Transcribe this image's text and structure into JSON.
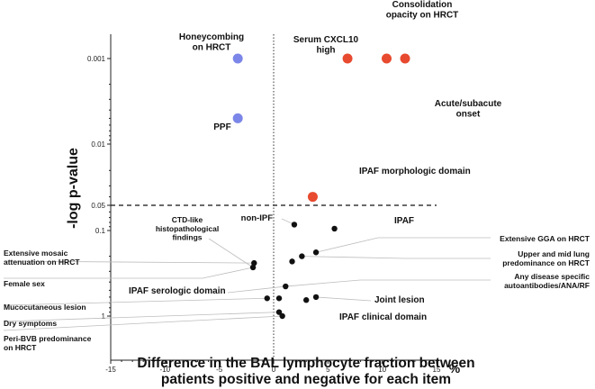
{
  "chart_data": {
    "type": "scatter",
    "xlabel": "Difference in the BAL lymphocyte fraction between patients positive and negative for each item",
    "x_unit": "%",
    "ylabel": "-log p-value",
    "xlim": [
      -15,
      15
    ],
    "x_ticks": [
      "-15",
      "-10",
      "-5",
      "0",
      "5",
      "10",
      "15"
    ],
    "y_ticks": [
      {
        "label": "0.001",
        "p": 0.001
      },
      {
        "label": "0.01",
        "p": 0.01
      },
      {
        "label": "0.05",
        "p": 0.05
      },
      {
        "label": "0.1",
        "p": 0.1
      },
      {
        "label": "1",
        "p": 1
      }
    ],
    "threshold_p": 0.05,
    "colors": {
      "negative_sig": "#7b86e8",
      "positive_sig": "#e84a2f",
      "nonsig": "#111111",
      "leader": "#bdbdbd"
    },
    "points": [
      {
        "x": -3.3,
        "p": 0.001,
        "color": "blue"
      },
      {
        "x": -3.3,
        "p": 0.005,
        "color": "blue"
      },
      {
        "x": 6.8,
        "p": 0.001,
        "color": "red"
      },
      {
        "x": 10.4,
        "p": 0.001,
        "color": "red"
      },
      {
        "x": 12.1,
        "p": 0.001,
        "color": "red"
      },
      {
        "x": 3.6,
        "p": 0.04,
        "color": "red"
      },
      {
        "x": 1.9,
        "p": 0.085,
        "color": "black"
      },
      {
        "x": 5.6,
        "p": 0.095,
        "color": "black"
      },
      {
        "x": 3.9,
        "p": 0.18,
        "color": "black"
      },
      {
        "x": 2.6,
        "p": 0.2,
        "color": "black"
      },
      {
        "x": 1.7,
        "p": 0.23,
        "color": "black"
      },
      {
        "x": -1.8,
        "p": 0.24,
        "color": "black"
      },
      {
        "x": -1.9,
        "p": 0.27,
        "color": "black"
      },
      {
        "x": 1.1,
        "p": 0.45,
        "color": "black"
      },
      {
        "x": 3.9,
        "p": 0.6,
        "color": "black"
      },
      {
        "x": 3.0,
        "p": 0.65,
        "color": "black"
      },
      {
        "x": -0.6,
        "p": 0.62,
        "color": "black"
      },
      {
        "x": 0.5,
        "p": 0.62,
        "color": "black"
      },
      {
        "x": 0.5,
        "p": 0.9,
        "color": "black"
      },
      {
        "x": 0.8,
        "p": 1.0,
        "color": "black"
      }
    ],
    "annotations": [
      {
        "text": [
          "Honeycombing",
          "on HRCT"
        ],
        "align": "middle",
        "size": 10,
        "leader": false
      },
      {
        "text": [
          "PPF"
        ],
        "align": "middle",
        "size": 10,
        "leader": false
      },
      {
        "text": [
          "Serum CXCL10",
          "high"
        ],
        "align": "middle",
        "size": 10,
        "leader": false
      },
      {
        "text": [
          "Consolidation",
          "opacity on HRCT"
        ],
        "align": "middle",
        "size": 10,
        "leader": false
      },
      {
        "text": [
          "Acute/subacute",
          "onset"
        ],
        "align": "middle",
        "size": 10,
        "leader": false
      },
      {
        "text": [
          "IPAF morphologic domain"
        ],
        "align": "start",
        "size": 10,
        "leader": false
      },
      {
        "text": [
          "non-IPF"
        ],
        "align": "end",
        "size": 9.5,
        "leader": true
      },
      {
        "text": [
          "IPAF"
        ],
        "align": "start",
        "size": 10,
        "leader": false
      },
      {
        "text": [
          "CTD-like",
          "histopathological",
          "findings"
        ],
        "align": "middle",
        "size": 8.5,
        "leader": true
      },
      {
        "text": [
          "Extensive GGA on HRCT"
        ],
        "align": "end",
        "size": 8.5,
        "leader": true
      },
      {
        "text": [
          "Upper and mid lung",
          "predominance on HRCT"
        ],
        "align": "end",
        "size": 8.5,
        "leader": true
      },
      {
        "text": [
          "Extensive mosaic",
          "attenuation on HRCT"
        ],
        "align": "start",
        "size": 8.5,
        "leader": true
      },
      {
        "text": [
          "Female sex"
        ],
        "align": "start",
        "size": 8.5,
        "leader": true
      },
      {
        "text": [
          "Any disease specific",
          "autoantibodies/ANA/RF"
        ],
        "align": "end",
        "size": 8.5,
        "leader": true
      },
      {
        "text": [
          "IPAF serologic domain"
        ],
        "align": "start",
        "size": 10,
        "leader": true
      },
      {
        "text": [
          "Mucocutaneous lesion"
        ],
        "align": "start",
        "size": 8.5,
        "leader": true
      },
      {
        "text": [
          "Joint lesion"
        ],
        "align": "start",
        "size": 10,
        "leader": true
      },
      {
        "text": [
          "Dry symptoms"
        ],
        "align": "start",
        "size": 8.5,
        "leader": true
      },
      {
        "text": [
          "IPAF clinical domain"
        ],
        "align": "start",
        "size": 10,
        "leader": false
      },
      {
        "text": [
          "Peri-BVB predominance",
          "on HRCT"
        ],
        "align": "start",
        "size": 8.5,
        "leader": true
      }
    ]
  }
}
